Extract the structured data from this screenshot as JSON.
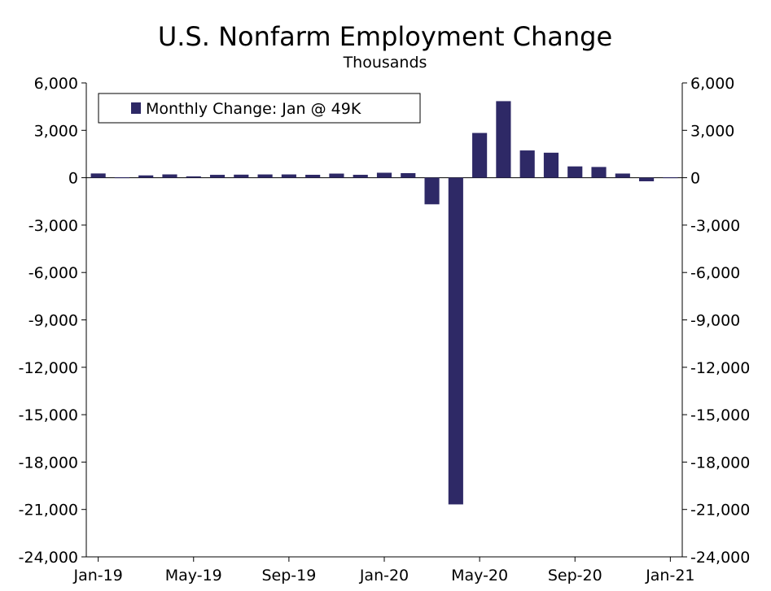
{
  "chart_data": {
    "type": "bar",
    "title": "U.S. Nonfarm Employment Change",
    "subtitle": "Thousands",
    "xlabel": "",
    "ylabel": "",
    "ylim": [
      -24000,
      6000
    ],
    "yticks": [
      "6,000",
      "3,000",
      "0",
      "-3,000",
      "-6,000",
      "-9,000",
      "-12,000",
      "-15,000",
      "-18,000",
      "-21,000",
      "-24,000"
    ],
    "ytick_values": [
      6000,
      3000,
      0,
      -3000,
      -6000,
      -9000,
      -12000,
      -15000,
      -18000,
      -21000,
      -24000
    ],
    "xtick_labels": [
      "Jan-19",
      "May-19",
      "Sep-19",
      "Jan-20",
      "May-20",
      "Sep-20",
      "Jan-21"
    ],
    "xtick_indices": [
      0,
      4,
      8,
      12,
      16,
      20,
      24
    ],
    "categories": [
      "Jan-19",
      "Feb-19",
      "Mar-19",
      "Apr-19",
      "May-19",
      "Jun-19",
      "Jul-19",
      "Aug-19",
      "Sep-19",
      "Oct-19",
      "Nov-19",
      "Dec-19",
      "Jan-20",
      "Feb-20",
      "Mar-20",
      "Apr-20",
      "May-20",
      "Jun-20",
      "Jul-20",
      "Aug-20",
      "Sep-20",
      "Oct-20",
      "Nov-20",
      "Dec-20",
      "Jan-21"
    ],
    "series": [
      {
        "name": "Monthly Change: Jan @ 49K",
        "color": "#2e2966",
        "values": [
          269,
          -1,
          147,
          210,
          85,
          182,
          194,
          207,
          208,
          185,
          261,
          184,
          315,
          289,
          -1683,
          -20679,
          2833,
          4846,
          1726,
          1583,
          716,
          680,
          264,
          -227,
          49
        ]
      }
    ],
    "legend": {
      "label": "Monthly Change: Jan @ 49K",
      "position": "top-left"
    },
    "grid": false,
    "dual_y_axis": true
  }
}
